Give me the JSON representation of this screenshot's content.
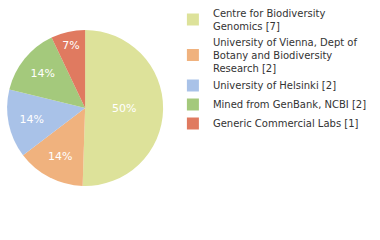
{
  "chart_data": {
    "type": "pie",
    "categories": [
      "Centre for Biodiversity Genomics [7]",
      "University of Vienna, Dept of Botany and Biodiversity Research [2]",
      "University of Helsinki [2]",
      "Mined from GenBank, NCBI [2]",
      "Generic Commercial Labs [1]"
    ],
    "values": [
      50,
      14,
      14,
      14,
      7
    ],
    "value_labels": [
      "50%",
      "14%",
      "14%",
      "14%",
      "7%"
    ],
    "colors": [
      "#dde29a",
      "#f0b27e",
      "#a9c2e8",
      "#a4c97c",
      "#e07a60"
    ],
    "data_labels": true,
    "legend": "right"
  }
}
